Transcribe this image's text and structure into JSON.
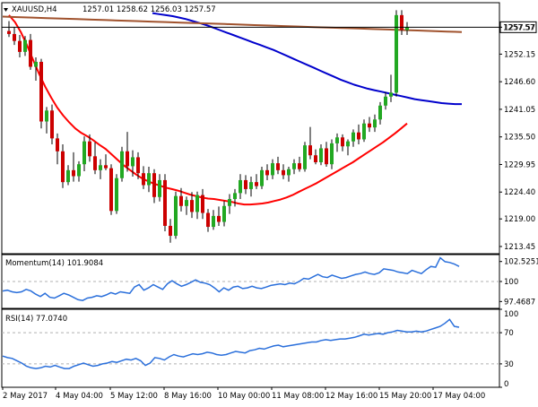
{
  "chart_data": [
    {
      "type": "candlestick",
      "panel": "price",
      "symbol_label": "XAUUSD,H4",
      "ohlc_label": "1257.01 1258.62 1256.03 1257.57",
      "current_price_label": "1257.57",
      "y_tick_labels": [
        "1257.57",
        "1252.15",
        "1246.60",
        "1241.05",
        "1235.50",
        "1229.95",
        "1224.40",
        "1219.00",
        "1213.45"
      ],
      "ylim": [
        1212.0,
        1262.5
      ],
      "candles": [
        {
          "o": 1256.8,
          "h": 1258.8,
          "l": 1255.6,
          "c": 1256.2
        },
        {
          "o": 1256.2,
          "h": 1257.6,
          "l": 1254.0,
          "c": 1254.8
        },
        {
          "o": 1254.8,
          "h": 1256.0,
          "l": 1251.5,
          "c": 1252.6
        },
        {
          "o": 1252.6,
          "h": 1255.8,
          "l": 1251.8,
          "c": 1255.0
        },
        {
          "o": 1255.0,
          "h": 1256.2,
          "l": 1249.0,
          "c": 1249.6
        },
        {
          "o": 1249.6,
          "h": 1251.5,
          "l": 1246.8,
          "c": 1250.6
        },
        {
          "o": 1250.6,
          "h": 1251.2,
          "l": 1237.2,
          "c": 1238.6
        },
        {
          "o": 1238.6,
          "h": 1241.5,
          "l": 1236.2,
          "c": 1240.8
        },
        {
          "o": 1240.8,
          "h": 1242.0,
          "l": 1234.0,
          "c": 1235.2
        },
        {
          "o": 1235.2,
          "h": 1236.2,
          "l": 1230.0,
          "c": 1232.6
        },
        {
          "o": 1232.6,
          "h": 1234.0,
          "l": 1225.2,
          "c": 1226.4
        },
        {
          "o": 1226.4,
          "h": 1229.8,
          "l": 1225.8,
          "c": 1228.8
        },
        {
          "o": 1228.8,
          "h": 1232.4,
          "l": 1226.5,
          "c": 1227.6
        },
        {
          "o": 1227.6,
          "h": 1230.6,
          "l": 1226.5,
          "c": 1230.0
        },
        {
          "o": 1230.0,
          "h": 1235.6,
          "l": 1228.6,
          "c": 1234.6
        },
        {
          "o": 1234.6,
          "h": 1236.0,
          "l": 1230.5,
          "c": 1231.6
        },
        {
          "o": 1231.6,
          "h": 1234.4,
          "l": 1228.0,
          "c": 1228.8
        },
        {
          "o": 1228.8,
          "h": 1231.0,
          "l": 1227.0,
          "c": 1229.8
        },
        {
          "o": 1229.8,
          "h": 1232.0,
          "l": 1228.8,
          "c": 1229.2
        },
        {
          "o": 1229.2,
          "h": 1230.0,
          "l": 1219.8,
          "c": 1220.6
        },
        {
          "o": 1220.6,
          "h": 1228.0,
          "l": 1220.0,
          "c": 1227.2
        },
        {
          "o": 1227.2,
          "h": 1233.5,
          "l": 1226.5,
          "c": 1232.6
        },
        {
          "o": 1232.6,
          "h": 1236.5,
          "l": 1228.5,
          "c": 1229.6
        },
        {
          "o": 1229.6,
          "h": 1232.8,
          "l": 1227.5,
          "c": 1231.4
        },
        {
          "o": 1231.4,
          "h": 1232.4,
          "l": 1227.0,
          "c": 1228.2
        },
        {
          "o": 1228.2,
          "h": 1229.6,
          "l": 1225.0,
          "c": 1225.8
        },
        {
          "o": 1225.8,
          "h": 1229.5,
          "l": 1224.4,
          "c": 1228.2
        },
        {
          "o": 1228.2,
          "h": 1229.0,
          "l": 1222.2,
          "c": 1223.4
        },
        {
          "o": 1223.4,
          "h": 1228.0,
          "l": 1222.5,
          "c": 1226.8
        },
        {
          "o": 1226.8,
          "h": 1228.0,
          "l": 1216.5,
          "c": 1217.6
        },
        {
          "o": 1217.6,
          "h": 1219.0,
          "l": 1214.2,
          "c": 1215.6
        },
        {
          "o": 1215.6,
          "h": 1224.5,
          "l": 1215.0,
          "c": 1223.6
        },
        {
          "o": 1223.6,
          "h": 1225.2,
          "l": 1220.5,
          "c": 1221.6
        },
        {
          "o": 1221.6,
          "h": 1223.5,
          "l": 1219.8,
          "c": 1222.8
        },
        {
          "o": 1222.8,
          "h": 1224.4,
          "l": 1219.2,
          "c": 1220.4
        },
        {
          "o": 1220.4,
          "h": 1224.5,
          "l": 1219.0,
          "c": 1223.8
        },
        {
          "o": 1223.8,
          "h": 1225.0,
          "l": 1219.0,
          "c": 1220.2
        },
        {
          "o": 1220.2,
          "h": 1221.0,
          "l": 1216.4,
          "c": 1217.4
        },
        {
          "o": 1217.4,
          "h": 1220.8,
          "l": 1216.8,
          "c": 1219.6
        },
        {
          "o": 1219.6,
          "h": 1221.5,
          "l": 1217.6,
          "c": 1218.4
        },
        {
          "o": 1218.4,
          "h": 1222.6,
          "l": 1217.5,
          "c": 1221.6
        },
        {
          "o": 1221.6,
          "h": 1224.0,
          "l": 1220.0,
          "c": 1223.0
        },
        {
          "o": 1223.0,
          "h": 1225.0,
          "l": 1221.5,
          "c": 1224.2
        },
        {
          "o": 1224.2,
          "h": 1228.0,
          "l": 1223.0,
          "c": 1226.8
        },
        {
          "o": 1226.8,
          "h": 1227.8,
          "l": 1224.0,
          "c": 1225.0
        },
        {
          "o": 1225.0,
          "h": 1227.5,
          "l": 1223.5,
          "c": 1226.4
        },
        {
          "o": 1226.4,
          "h": 1228.0,
          "l": 1225.0,
          "c": 1225.6
        },
        {
          "o": 1225.6,
          "h": 1229.5,
          "l": 1225.0,
          "c": 1228.8
        },
        {
          "o": 1228.8,
          "h": 1230.0,
          "l": 1226.8,
          "c": 1227.8
        },
        {
          "o": 1227.8,
          "h": 1231.0,
          "l": 1227.0,
          "c": 1230.2
        },
        {
          "o": 1230.2,
          "h": 1231.5,
          "l": 1228.0,
          "c": 1228.8
        },
        {
          "o": 1228.8,
          "h": 1230.0,
          "l": 1227.0,
          "c": 1227.8
        },
        {
          "o": 1227.8,
          "h": 1229.5,
          "l": 1226.5,
          "c": 1229.0
        },
        {
          "o": 1229.0,
          "h": 1231.0,
          "l": 1228.0,
          "c": 1230.2
        },
        {
          "o": 1230.2,
          "h": 1231.5,
          "l": 1228.5,
          "c": 1229.0
        },
        {
          "o": 1229.0,
          "h": 1234.5,
          "l": 1228.5,
          "c": 1233.8
        },
        {
          "o": 1233.8,
          "h": 1237.5,
          "l": 1231.0,
          "c": 1231.8
        },
        {
          "o": 1231.8,
          "h": 1233.0,
          "l": 1230.0,
          "c": 1230.4
        },
        {
          "o": 1230.4,
          "h": 1234.0,
          "l": 1229.8,
          "c": 1233.2
        },
        {
          "o": 1233.2,
          "h": 1234.5,
          "l": 1229.5,
          "c": 1230.0
        },
        {
          "o": 1230.0,
          "h": 1235.0,
          "l": 1229.0,
          "c": 1234.2
        },
        {
          "o": 1234.2,
          "h": 1236.2,
          "l": 1232.5,
          "c": 1235.4
        },
        {
          "o": 1235.4,
          "h": 1236.0,
          "l": 1232.6,
          "c": 1233.6
        },
        {
          "o": 1233.6,
          "h": 1235.0,
          "l": 1231.8,
          "c": 1234.6
        },
        {
          "o": 1234.6,
          "h": 1237.0,
          "l": 1233.5,
          "c": 1236.4
        },
        {
          "o": 1236.4,
          "h": 1238.0,
          "l": 1234.0,
          "c": 1235.0
        },
        {
          "o": 1235.0,
          "h": 1239.0,
          "l": 1234.5,
          "c": 1238.2
        },
        {
          "o": 1238.2,
          "h": 1239.5,
          "l": 1236.5,
          "c": 1237.4
        },
        {
          "o": 1237.4,
          "h": 1240.0,
          "l": 1236.5,
          "c": 1239.0
        },
        {
          "o": 1239.0,
          "h": 1242.5,
          "l": 1238.0,
          "c": 1241.8
        },
        {
          "o": 1241.8,
          "h": 1244.5,
          "l": 1241.0,
          "c": 1243.6
        },
        {
          "o": 1243.6,
          "h": 1248.0,
          "l": 1242.5,
          "c": 1244.4
        },
        {
          "o": 1244.4,
          "h": 1261.0,
          "l": 1243.6,
          "c": 1260.0
        },
        {
          "o": 1260.0,
          "h": 1261.0,
          "l": 1256.0,
          "c": 1257.0
        },
        {
          "o": 1257.0,
          "h": 1258.6,
          "l": 1256.0,
          "c": 1257.6
        }
      ],
      "moving_averages": [
        {
          "color": "#ff0000",
          "values": [
            1260.0,
            1258.6,
            1256.5,
            1253.9,
            1251.0,
            1248.2,
            1245.6,
            1243.4,
            1241.4,
            1239.8,
            1238.4,
            1237.2,
            1236.3,
            1235.6,
            1234.8,
            1233.9,
            1233.1,
            1232.0,
            1230.9,
            1229.8,
            1228.9,
            1228.0,
            1227.2,
            1226.6,
            1226.1,
            1225.7,
            1225.3,
            1225.0,
            1224.7,
            1224.3,
            1223.9,
            1223.6,
            1223.3,
            1223.1,
            1223.0,
            1222.8,
            1222.6,
            1222.4,
            1222.1,
            1221.9,
            1221.9,
            1222.0,
            1222.1,
            1222.3,
            1222.6,
            1222.9,
            1223.3,
            1223.8,
            1224.4,
            1225.0,
            1225.6,
            1226.2,
            1226.9,
            1227.6,
            1228.3,
            1229.0,
            1229.7,
            1230.4,
            1231.2,
            1232.0,
            1232.8,
            1233.6,
            1234.4,
            1235.3,
            1236.2,
            1237.2,
            1238.2
          ]
        },
        {
          "color": "#0000cc",
          "values": [
            1260.4,
            1260.2,
            1260.0,
            1259.8,
            1259.5,
            1259.2,
            1258.8,
            1258.4,
            1258.0,
            1257.5,
            1257.0,
            1256.5,
            1256.0,
            1255.5,
            1255.0,
            1254.5,
            1254.0,
            1253.5,
            1253.0,
            1252.4,
            1251.8,
            1251.2,
            1250.6,
            1250.0,
            1249.4,
            1248.8,
            1248.2,
            1247.6,
            1247.0,
            1246.5,
            1246.0,
            1245.6,
            1245.2,
            1244.9,
            1244.6,
            1244.3,
            1244.0,
            1243.7,
            1243.4,
            1243.1,
            1242.9,
            1242.7,
            1242.5,
            1242.3,
            1242.2,
            1242.1,
            1242.1
          ]
        },
        {
          "color": "#a0522d",
          "values": [
            1259.7,
            1259.6,
            1259.5,
            1259.4,
            1259.3,
            1259.2,
            1259.1,
            1259.0,
            1258.9,
            1258.8,
            1258.7,
            1258.6,
            1258.5,
            1258.4,
            1258.3,
            1258.2,
            1258.1,
            1258.0,
            1257.9,
            1257.8,
            1257.7,
            1257.6,
            1257.5,
            1257.4,
            1257.3,
            1257.2,
            1257.1,
            1257.0,
            1256.9,
            1256.8,
            1256.7,
            1256.6
          ]
        }
      ]
    },
    {
      "type": "line",
      "panel": "momentum",
      "label": "Momentum(14) 101.9084",
      "y_tick_labels": [
        "102.5251",
        "100",
        "97.4687"
      ],
      "ylim": [
        96.6,
        103.4
      ],
      "reference_levels": [
        100
      ],
      "values": [
        98.8,
        98.9,
        98.7,
        98.6,
        98.7,
        99.0,
        98.8,
        98.4,
        98.1,
        98.5,
        98.0,
        97.9,
        98.2,
        98.5,
        98.3,
        98.0,
        97.7,
        97.6,
        97.9,
        98.0,
        98.2,
        98.1,
        98.3,
        98.6,
        98.4,
        98.7,
        98.6,
        98.5,
        99.3,
        99.6,
        98.9,
        99.2,
        99.6,
        99.3,
        99.0,
        99.7,
        100.1,
        99.7,
        99.4,
        99.6,
        99.9,
        100.2,
        99.9,
        99.8,
        99.6,
        99.2,
        98.7,
        99.2,
        98.9,
        99.3,
        99.4,
        99.1,
        99.2,
        99.4,
        99.2,
        99.1,
        99.3,
        99.5,
        99.6,
        99.7,
        99.6,
        99.8,
        99.7,
        100.0,
        100.4,
        100.3,
        100.6,
        100.9,
        100.6,
        100.5,
        100.8,
        100.6,
        100.4,
        100.5,
        100.7,
        100.9,
        101.0,
        101.2,
        101.0,
        100.9,
        101.1,
        101.6,
        101.5,
        101.4,
        101.2,
        101.1,
        101.0,
        101.4,
        101.2,
        101.0,
        101.5,
        101.9,
        101.8,
        103.0,
        102.5,
        102.4,
        102.2,
        101.9
      ]
    },
    {
      "type": "line",
      "panel": "rsi",
      "label": "RSI(14) 77.0740",
      "y_tick_labels": [
        "100",
        "70",
        "30",
        "0"
      ],
      "ylim": [
        0,
        100
      ],
      "reference_levels": [
        70,
        30
      ],
      "values": [
        40,
        38,
        37,
        34,
        31,
        27,
        25,
        24,
        25,
        27,
        26,
        28,
        26,
        24,
        24,
        27,
        29,
        31,
        29,
        27,
        28,
        30,
        31,
        33,
        32,
        34,
        36,
        35,
        37,
        34,
        28,
        31,
        38,
        37,
        35,
        39,
        42,
        40,
        39,
        41,
        43,
        42,
        43,
        45,
        44,
        42,
        41,
        42,
        44,
        46,
        45,
        44,
        47,
        48,
        50,
        49,
        51,
        53,
        54,
        52,
        53,
        54,
        55,
        56,
        57,
        58,
        58,
        60,
        61,
        60,
        61,
        62,
        62,
        63,
        64,
        66,
        68,
        67,
        68,
        69,
        68,
        70,
        71,
        73,
        72,
        71,
        71,
        72,
        71,
        72,
        74,
        76,
        78,
        82,
        87,
        78,
        77
      ]
    },
    {
      "type": "axis",
      "panel": "time",
      "x_tick_labels": [
        "2 May 2017",
        "4 May 04:00",
        "5 May 12:00",
        "8 May 16:00",
        "10 May 00:00",
        "11 May 08:00",
        "12 May 16:00",
        "15 May 20:00",
        "17 May 04:00"
      ]
    }
  ]
}
